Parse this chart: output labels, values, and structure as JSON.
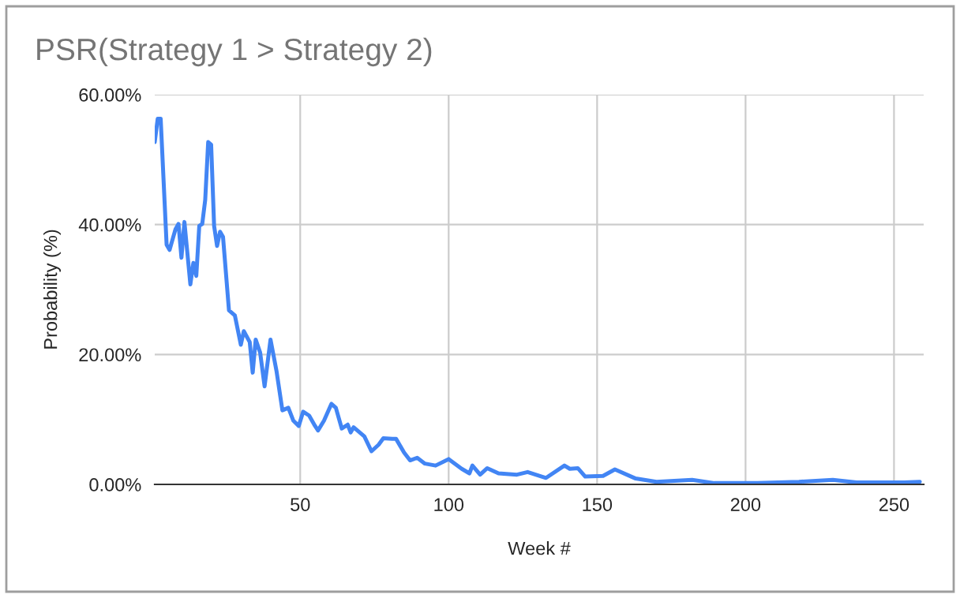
{
  "chart_data": {
    "type": "line",
    "title": "PSR(Strategy 1 > Strategy 2)",
    "xlabel": "Week #",
    "ylabel": "Probability (%)",
    "x": [
      1,
      2,
      3,
      5,
      6,
      8,
      9,
      10,
      11,
      13,
      14,
      15,
      16,
      17,
      18,
      19,
      20,
      21,
      22,
      23,
      24,
      26,
      28,
      30,
      31,
      33,
      34,
      35,
      36.5,
      38,
      40,
      42,
      44,
      46,
      47.7,
      49.5,
      51,
      53,
      55,
      56,
      58,
      60.5,
      62,
      64,
      66,
      67,
      68,
      71.6,
      74,
      76.4,
      78,
      81,
      82.3,
      85,
      87,
      89.4,
      92,
      95.6,
      100,
      104.4,
      107,
      108,
      110.6,
      113,
      116.8,
      123,
      126.6,
      132.8,
      139,
      140.8,
      143.5,
      146,
      152,
      156,
      163,
      170,
      182,
      189.5,
      204,
      218,
      229.4,
      237.4,
      253.4,
      258.7
    ],
    "series": [
      {
        "color": "#4285f4",
        "values": [
          52.7,
          56.3,
          56.3,
          36.9,
          36.1,
          39.3,
          40.1,
          34.9,
          40.4,
          30.8,
          34.1,
          32.1,
          39.8,
          40.1,
          43.8,
          52.7,
          52.3,
          39.8,
          36.7,
          38.9,
          38.1,
          26.8,
          26.0,
          21.5,
          23.6,
          21.9,
          17.2,
          22.3,
          20.3,
          15.1,
          22.3,
          17.5,
          11.4,
          11.8,
          9.8,
          9.0,
          11.2,
          10.6,
          9.0,
          8.3,
          9.8,
          12.4,
          11.8,
          8.6,
          9.2,
          8.0,
          8.8,
          7.4,
          5.1,
          6.1,
          7.1,
          7.0,
          7.0,
          4.9,
          3.7,
          4.1,
          3.2,
          2.9,
          3.9,
          2.4,
          1.7,
          2.9,
          1.5,
          2.5,
          1.7,
          1.5,
          1.9,
          1.0,
          2.9,
          2.4,
          2.5,
          1.2,
          1.3,
          2.3,
          0.9,
          0.4,
          0.7,
          0.2,
          0.2,
          0.4,
          0.7,
          0.3,
          0.3,
          0.4
        ]
      }
    ],
    "xlim": [
      1,
      260
    ],
    "xticks": [
      50,
      100,
      150,
      200,
      250
    ],
    "ylim": [
      0,
      60
    ],
    "yticks": [
      {
        "value": 0,
        "label": "0.00%"
      },
      {
        "value": 20,
        "label": "20.00%"
      },
      {
        "value": 40,
        "label": "40.00%"
      },
      {
        "value": 60,
        "label": "60.00%"
      }
    ],
    "grid": true
  }
}
